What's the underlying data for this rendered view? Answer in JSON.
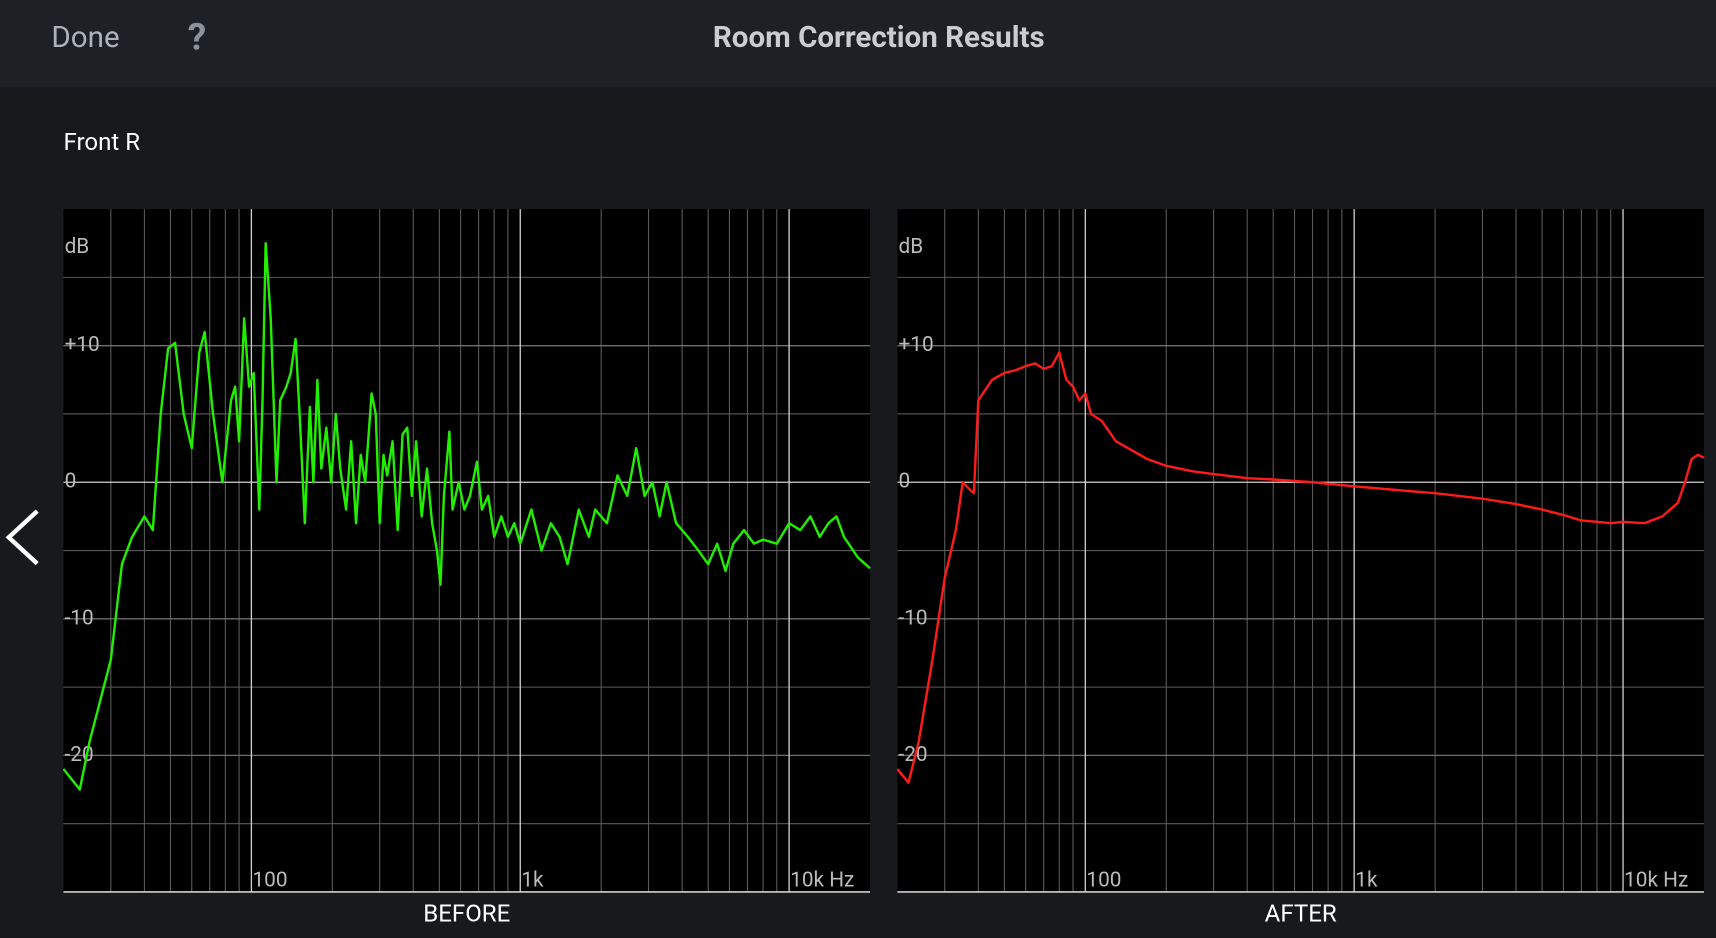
{
  "header": {
    "done": "Done",
    "help": "?",
    "title": "Room Correction Results"
  },
  "channel": "Front R",
  "chart_data": [
    {
      "type": "line",
      "title": "BEFORE",
      "ylabel": "dB",
      "log_x": true,
      "grid": true,
      "xlim": [
        20,
        20000
      ],
      "ylim": [
        -30,
        20
      ],
      "xticks": [
        100,
        {
          "value": 1000,
          "label": "1k"
        },
        {
          "value": 10000,
          "label": "10k Hz"
        }
      ],
      "xminor": [
        30,
        40,
        50,
        60,
        70,
        80,
        90,
        200,
        300,
        400,
        500,
        600,
        700,
        800,
        900,
        2000,
        3000,
        4000,
        5000,
        6000,
        7000,
        8000,
        9000
      ],
      "yticks": [
        {
          "value": 10,
          "label": "+10"
        },
        0,
        -10,
        -20
      ],
      "yminor": [
        15,
        5,
        -5,
        -15,
        -25
      ],
      "x": [
        20,
        23,
        25,
        30,
        33,
        36,
        40,
        43,
        46,
        49,
        52,
        56,
        60,
        64,
        67,
        72,
        78,
        84,
        87,
        90,
        94,
        98,
        102,
        107,
        110,
        113,
        118,
        124,
        128,
        135,
        140,
        146,
        152,
        158,
        165,
        170,
        176,
        182,
        190,
        198,
        206,
        214,
        225,
        235,
        245,
        255,
        265,
        280,
        290,
        300,
        310,
        320,
        335,
        350,
        365,
        380,
        395,
        410,
        430,
        450,
        470,
        490,
        505,
        520,
        545,
        560,
        590,
        620,
        650,
        690,
        720,
        760,
        800,
        850,
        900,
        950,
        1000,
        1100,
        1200,
        1300,
        1400,
        1500,
        1650,
        1800,
        1900,
        2100,
        2300,
        2500,
        2700,
        2900,
        3100,
        3300,
        3500,
        3800,
        4200,
        4600,
        5000,
        5400,
        5800,
        6200,
        6800,
        7400,
        8000,
        9000,
        10000,
        11000,
        12000,
        13000,
        14000,
        15000,
        16000,
        18000,
        20000
      ],
      "series": [
        {
          "color": "#22ee00",
          "values": [
            -21,
            -22.5,
            -19,
            -13,
            -6,
            -4,
            -2.5,
            -3.5,
            5,
            9.8,
            10.2,
            5,
            2.5,
            9.5,
            11,
            5,
            0,
            6,
            7,
            3,
            12,
            7,
            8,
            -2,
            6,
            17.5,
            12,
            0,
            6,
            7,
            8,
            10.5,
            4,
            -3,
            5.5,
            0,
            7.5,
            1,
            4,
            0,
            5,
            1,
            -2,
            3,
            -3,
            2,
            0,
            6.5,
            5,
            -3,
            2,
            0.5,
            3,
            -3.5,
            3.5,
            4,
            -1,
            3,
            -2.5,
            1,
            -3,
            -5,
            -7.5,
            -1,
            3.7,
            -2,
            0,
            -2,
            -1,
            1.5,
            -2,
            -1,
            -4,
            -2.5,
            -4,
            -3,
            -4.5,
            -2,
            -5,
            -3,
            -4,
            -6,
            -2,
            -4,
            -2,
            -3,
            0.5,
            -1,
            2.5,
            -1,
            0,
            -2.5,
            0,
            -3,
            -4,
            -5,
            -6,
            -4.5,
            -6.5,
            -4.5,
            -3.5,
            -4.5,
            -4.2,
            -4.5,
            -3,
            -3.5,
            -2.5,
            -4,
            -3,
            -2.5,
            -4,
            -5.5,
            -6.3
          ]
        }
      ]
    },
    {
      "type": "line",
      "title": "AFTER",
      "ylabel": "dB",
      "log_x": true,
      "grid": true,
      "xlim": [
        20,
        20000
      ],
      "ylim": [
        -30,
        20
      ],
      "xticks": [
        100,
        {
          "value": 1000,
          "label": "1k"
        },
        {
          "value": 10000,
          "label": "10k Hz"
        }
      ],
      "xminor": [
        30,
        40,
        50,
        60,
        70,
        80,
        90,
        200,
        300,
        400,
        500,
        600,
        700,
        800,
        900,
        2000,
        3000,
        4000,
        5000,
        6000,
        7000,
        8000,
        9000
      ],
      "yticks": [
        {
          "value": 10,
          "label": "+10"
        },
        0,
        -10,
        -20
      ],
      "yminor": [
        15,
        5,
        -5,
        -15,
        -25
      ],
      "x": [
        20,
        22,
        24,
        27,
        30,
        33,
        35,
        37,
        38.5,
        40,
        45,
        50,
        55,
        60,
        65,
        70,
        75,
        80,
        85,
        90,
        95,
        100,
        105,
        115,
        130,
        150,
        170,
        200,
        250,
        300,
        400,
        500,
        700,
        1000,
        1500,
        2000,
        3000,
        4000,
        5000,
        6000,
        7000,
        8000,
        9000,
        10000,
        12000,
        14000,
        16000,
        17000,
        18000,
        19000,
        20000
      ],
      "series": [
        {
          "color": "#ff1a1a",
          "values": [
            -21,
            -22,
            -19,
            -13,
            -7,
            -3.5,
            0,
            -0.5,
            -0.8,
            6,
            7.5,
            8,
            8.2,
            8.5,
            8.7,
            8.3,
            8.5,
            9.5,
            7.5,
            7,
            6,
            6.5,
            5,
            4.5,
            3,
            2.3,
            1.7,
            1.2,
            0.8,
            0.6,
            0.3,
            0.2,
            0,
            -0.3,
            -0.6,
            -0.8,
            -1.2,
            -1.6,
            -2,
            -2.4,
            -2.8,
            -2.9,
            -3,
            -2.9,
            -3,
            -2.5,
            -1.5,
            0,
            1.7,
            2,
            1.8
          ]
        }
      ]
    }
  ]
}
